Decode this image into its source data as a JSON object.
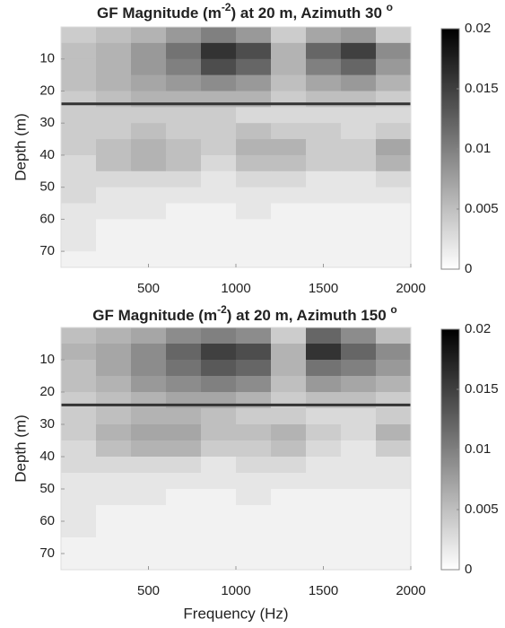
{
  "chart_data": [
    {
      "type": "heatmap",
      "title": [
        "GF Magnitude (m",
        "-2",
        ") at 20 m, Azimuth 30 ",
        "o"
      ],
      "ylabel": "Depth (m)",
      "xlim": [
        0,
        2000
      ],
      "xticks": [
        500,
        1000,
        1500,
        2000
      ],
      "ylim": [
        0,
        75
      ],
      "yticks": [
        10,
        20,
        30,
        40,
        50,
        60,
        70
      ],
      "yreverse": true,
      "x": [
        100,
        300,
        500,
        700,
        900,
        1100,
        1300,
        1500,
        1700,
        1900
      ],
      "y": [
        2.5,
        7.5,
        12.5,
        17.5,
        22.5,
        27.5,
        32.5,
        37.5,
        42.5,
        47.5,
        52.5,
        57.5,
        62.5,
        67.5,
        72.5
      ],
      "z": [
        [
          0.004,
          0.005,
          0.006,
          0.008,
          0.01,
          0.008,
          0.004,
          0.007,
          0.008,
          0.004
        ],
        [
          0.005,
          0.006,
          0.008,
          0.011,
          0.016,
          0.014,
          0.006,
          0.012,
          0.015,
          0.009
        ],
        [
          0.005,
          0.006,
          0.008,
          0.01,
          0.014,
          0.012,
          0.006,
          0.01,
          0.012,
          0.008
        ],
        [
          0.005,
          0.006,
          0.007,
          0.008,
          0.009,
          0.008,
          0.005,
          0.007,
          0.008,
          0.006
        ],
        [
          0.004,
          0.005,
          0.006,
          0.006,
          0.006,
          0.006,
          0.004,
          0.005,
          0.005,
          0.004
        ],
        [
          0.004,
          0.004,
          0.004,
          0.004,
          0.004,
          0.003,
          0.003,
          0.003,
          0.003,
          0.003
        ],
        [
          0.004,
          0.004,
          0.005,
          0.004,
          0.004,
          0.005,
          0.004,
          0.004,
          0.003,
          0.004
        ],
        [
          0.004,
          0.005,
          0.006,
          0.005,
          0.004,
          0.006,
          0.006,
          0.004,
          0.004,
          0.007
        ],
        [
          0.003,
          0.005,
          0.006,
          0.005,
          0.003,
          0.005,
          0.005,
          0.004,
          0.004,
          0.006
        ],
        [
          0.003,
          0.003,
          0.003,
          0.003,
          0.002,
          0.003,
          0.003,
          0.002,
          0.002,
          0.003
        ],
        [
          0.003,
          0.002,
          0.002,
          0.002,
          0.002,
          0.002,
          0.002,
          0.002,
          0.002,
          0.002
        ],
        [
          0.002,
          0.002,
          0.002,
          0.001,
          0.001,
          0.002,
          0.001,
          0.001,
          0.001,
          0.001
        ],
        [
          0.002,
          0.001,
          0.001,
          0.001,
          0.001,
          0.001,
          0.001,
          0.001,
          0.001,
          0.001
        ],
        [
          0.002,
          0.001,
          0.001,
          0.001,
          0.001,
          0.001,
          0.001,
          0.001,
          0.001,
          0.001
        ],
        [
          0.001,
          0.001,
          0.001,
          0.001,
          0.001,
          0.001,
          0.001,
          0.001,
          0.001,
          0.001
        ]
      ],
      "colormap": [
        "#ffffff",
        "#000000"
      ],
      "clim": [
        0,
        0.02
      ],
      "cticks": [
        0,
        0.005,
        0.01,
        0.015,
        0.02
      ],
      "hline": 24,
      "hline_color": "#333333"
    },
    {
      "type": "heatmap",
      "title": [
        "GF Magnitude (m",
        "-2",
        ") at 20 m, Azimuth 150 ",
        "o"
      ],
      "ylabel": "Depth (m)",
      "xlabel": "Frequency (Hz)",
      "xlim": [
        0,
        2000
      ],
      "xticks": [
        500,
        1000,
        1500,
        2000
      ],
      "ylim": [
        0,
        75
      ],
      "yticks": [
        10,
        20,
        30,
        40,
        50,
        60,
        70
      ],
      "yreverse": true,
      "x": [
        100,
        300,
        500,
        700,
        900,
        1100,
        1300,
        1500,
        1700,
        1900
      ],
      "y": [
        2.5,
        7.5,
        12.5,
        17.5,
        22.5,
        27.5,
        32.5,
        37.5,
        42.5,
        47.5,
        52.5,
        57.5,
        62.5,
        67.5,
        72.5
      ],
      "z": [
        [
          0.005,
          0.006,
          0.007,
          0.009,
          0.01,
          0.009,
          0.004,
          0.012,
          0.009,
          0.005
        ],
        [
          0.006,
          0.007,
          0.009,
          0.012,
          0.015,
          0.014,
          0.006,
          0.016,
          0.012,
          0.009
        ],
        [
          0.005,
          0.007,
          0.009,
          0.011,
          0.013,
          0.012,
          0.006,
          0.011,
          0.01,
          0.008
        ],
        [
          0.005,
          0.006,
          0.008,
          0.009,
          0.01,
          0.009,
          0.005,
          0.008,
          0.007,
          0.006
        ],
        [
          0.004,
          0.005,
          0.006,
          0.007,
          0.007,
          0.006,
          0.004,
          0.005,
          0.005,
          0.004
        ],
        [
          0.004,
          0.005,
          0.006,
          0.006,
          0.005,
          0.004,
          0.004,
          0.003,
          0.003,
          0.004
        ],
        [
          0.004,
          0.006,
          0.007,
          0.007,
          0.005,
          0.005,
          0.006,
          0.004,
          0.003,
          0.006
        ],
        [
          0.003,
          0.005,
          0.006,
          0.006,
          0.004,
          0.004,
          0.005,
          0.003,
          0.002,
          0.004
        ],
        [
          0.003,
          0.003,
          0.003,
          0.003,
          0.002,
          0.003,
          0.003,
          0.002,
          0.002,
          0.002
        ],
        [
          0.002,
          0.002,
          0.002,
          0.002,
          0.002,
          0.002,
          0.002,
          0.002,
          0.002,
          0.002
        ],
        [
          0.002,
          0.002,
          0.002,
          0.001,
          0.001,
          0.002,
          0.001,
          0.001,
          0.001,
          0.001
        ],
        [
          0.002,
          0.001,
          0.001,
          0.001,
          0.001,
          0.001,
          0.001,
          0.001,
          0.001,
          0.001
        ],
        [
          0.002,
          0.001,
          0.001,
          0.001,
          0.001,
          0.001,
          0.001,
          0.001,
          0.001,
          0.001
        ],
        [
          0.001,
          0.001,
          0.001,
          0.001,
          0.001,
          0.001,
          0.001,
          0.001,
          0.001,
          0.001
        ],
        [
          0.001,
          0.001,
          0.001,
          0.001,
          0.001,
          0.001,
          0.001,
          0.001,
          0.001,
          0.001
        ]
      ],
      "colormap": [
        "#ffffff",
        "#000000"
      ],
      "clim": [
        0,
        0.02
      ],
      "cticks": [
        0,
        0.005,
        0.01,
        0.015,
        0.02
      ],
      "hline": 24,
      "hline_color": "#333333"
    }
  ]
}
